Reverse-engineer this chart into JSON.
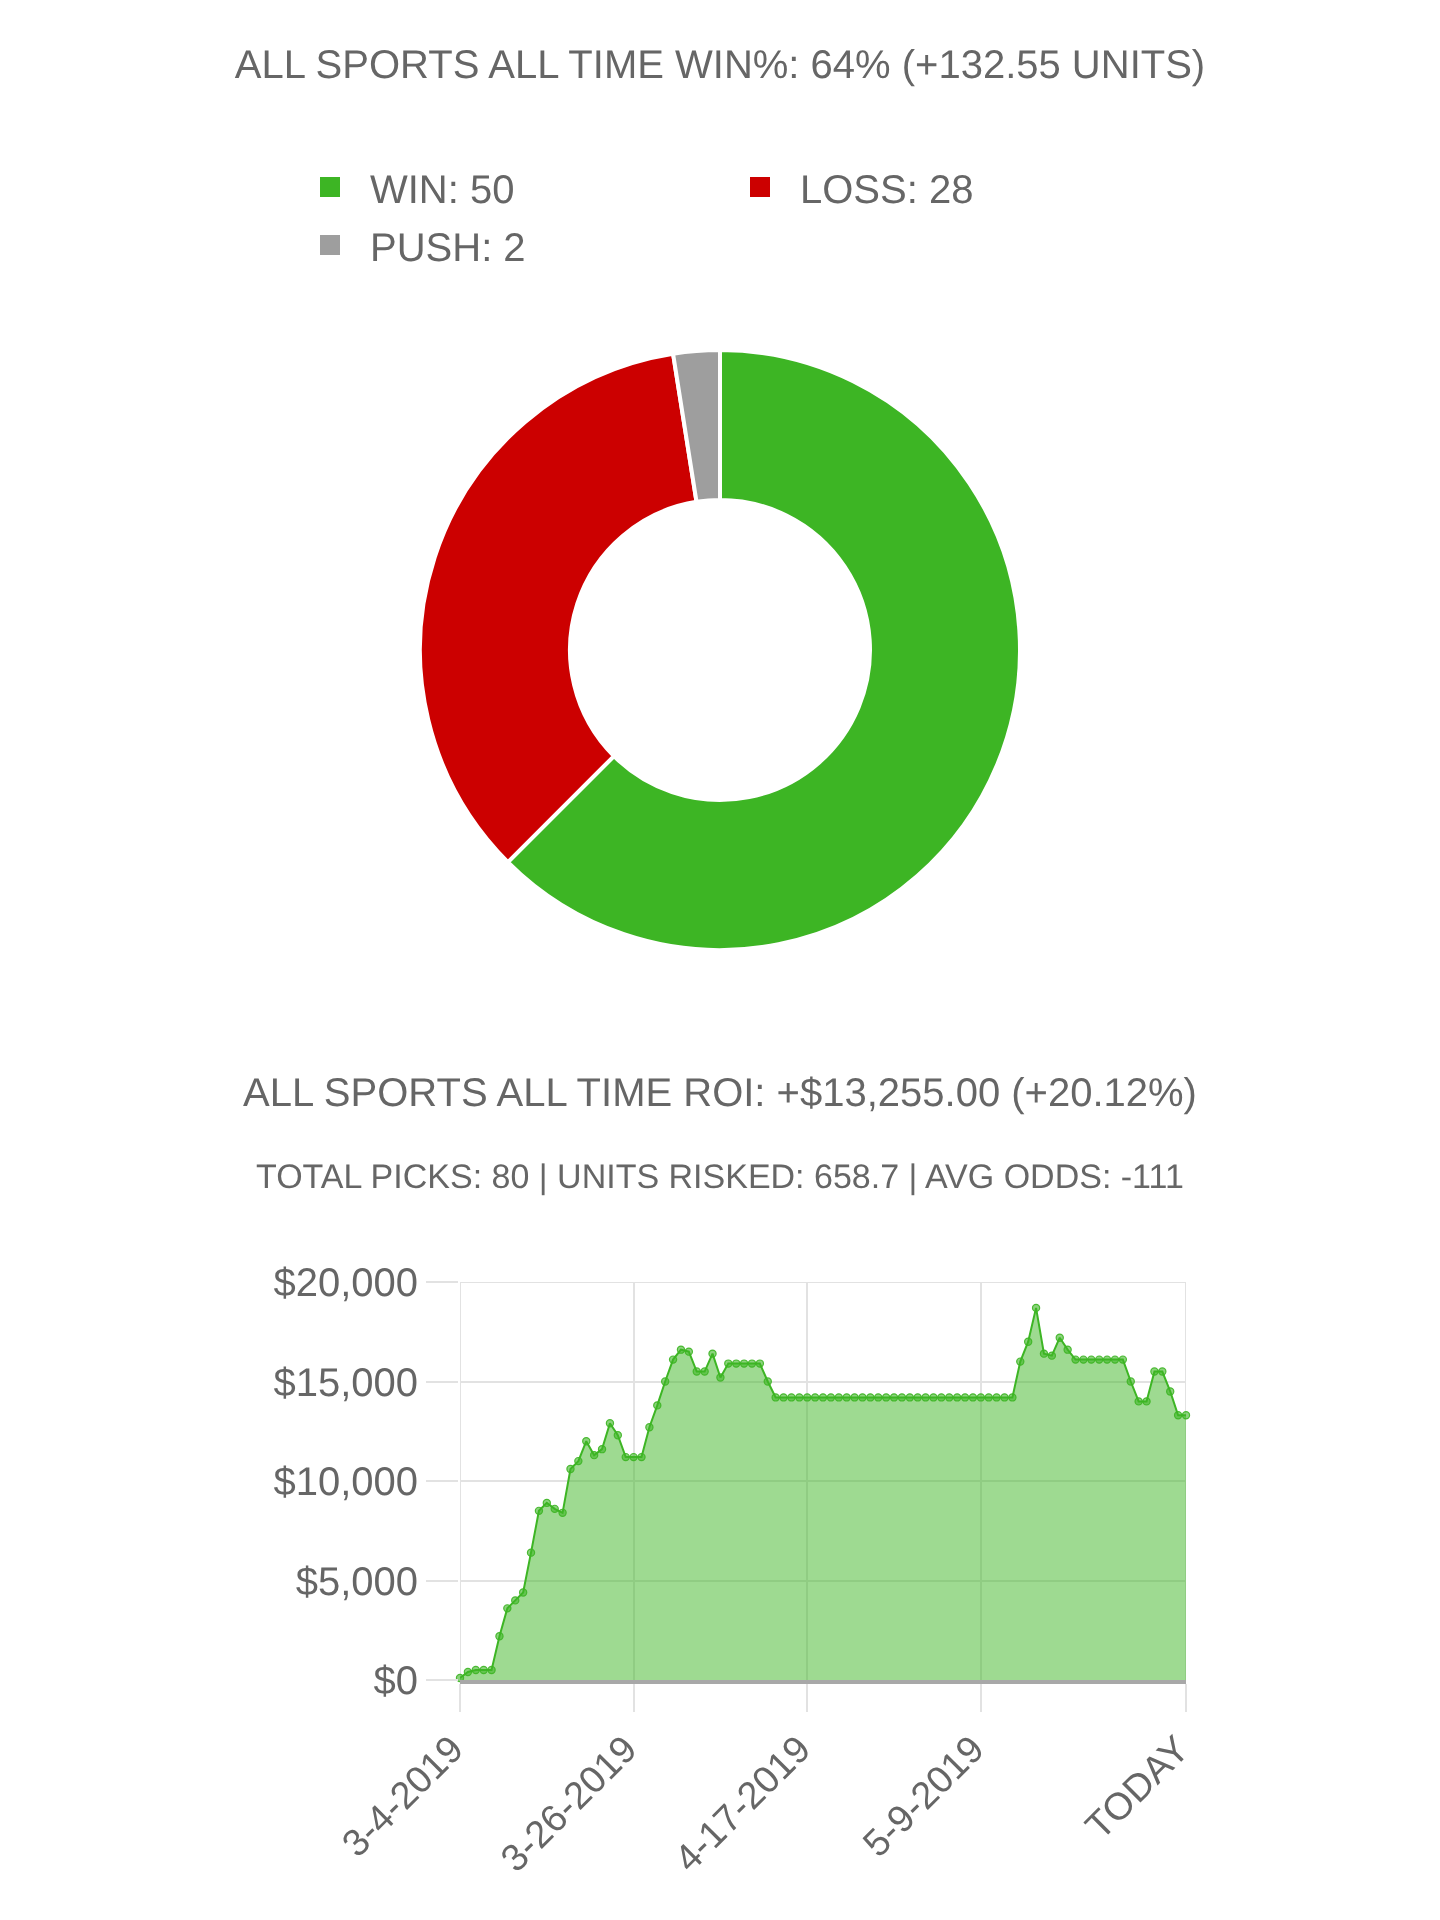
{
  "chart_data": [
    {
      "type": "donut",
      "title": "ALL SPORTS ALL TIME WIN%: 64% (+132.55 UNITS)",
      "categories": [
        "WIN: 50",
        "LOSS: 28",
        "PUSH: 2"
      ],
      "values": [
        50,
        28,
        2
      ],
      "colors": [
        "#3db524",
        "#cc0000",
        "#9e9e9e"
      ],
      "legend": "top"
    },
    {
      "type": "area",
      "title": "ALL SPORTS ALL TIME ROI: +$13,255.00 (+20.12%)",
      "subtitle": "TOTAL PICKS: 80 | UNITS RISKED: 658.7 | AVG ODDS: -111",
      "categories": [
        "3-4-2019",
        null,
        null,
        null,
        null,
        null,
        null,
        null,
        null,
        null,
        null,
        null,
        null,
        null,
        null,
        null,
        null,
        null,
        null,
        null,
        null,
        null,
        "3-26-2019",
        null,
        null,
        null,
        null,
        null,
        null,
        null,
        null,
        null,
        null,
        null,
        null,
        null,
        null,
        null,
        null,
        null,
        null,
        null,
        null,
        null,
        "4-17-2019",
        null,
        null,
        null,
        null,
        null,
        null,
        null,
        null,
        null,
        null,
        null,
        null,
        null,
        null,
        null,
        null,
        null,
        null,
        null,
        null,
        null,
        "5-9-2019",
        null,
        null,
        null,
        null,
        null,
        null,
        null,
        null,
        null,
        null,
        null,
        null,
        null,
        null,
        null,
        null,
        null,
        null,
        null,
        null,
        null,
        null,
        null,
        null,
        null,
        "TODAY"
      ],
      "values": [
        100,
        400,
        500,
        500,
        500,
        2200,
        3600,
        4000,
        4400,
        6400,
        8500,
        8900,
        8600,
        8400,
        10600,
        11000,
        12000,
        11300,
        11600,
        12900,
        12300,
        11200,
        11200,
        11200,
        12700,
        13800,
        15000,
        16100,
        16600,
        16500,
        15500,
        15500,
        16400,
        15200,
        15900,
        15900,
        15900,
        15900,
        15900,
        15000,
        14200,
        14200,
        14200,
        14200,
        14200,
        14200,
        14200,
        14200,
        14200,
        14200,
        14200,
        14200,
        14200,
        14200,
        14200,
        14200,
        14200,
        14200,
        14200,
        14200,
        14200,
        14200,
        14200,
        14200,
        14200,
        14200,
        14200,
        14200,
        14200,
        14200,
        14200,
        16000,
        17000,
        18700,
        16400,
        16300,
        17200,
        16600,
        16100,
        16100,
        16100,
        16100,
        16100,
        16100,
        16100,
        15000,
        14000,
        14000,
        15500,
        15500,
        14500,
        13300,
        13300
      ],
      "color": "#3db524",
      "marker": "circle",
      "ylim": [
        0,
        20000
      ],
      "yticks": [
        {
          "value": 0,
          "label": "$0"
        },
        {
          "value": 5000,
          "label": "$5,000"
        },
        {
          "value": 10000,
          "label": "$10,000"
        },
        {
          "value": 15000,
          "label": "$15,000"
        },
        {
          "value": 20000,
          "label": "$20,000"
        }
      ],
      "grid": true
    }
  ]
}
